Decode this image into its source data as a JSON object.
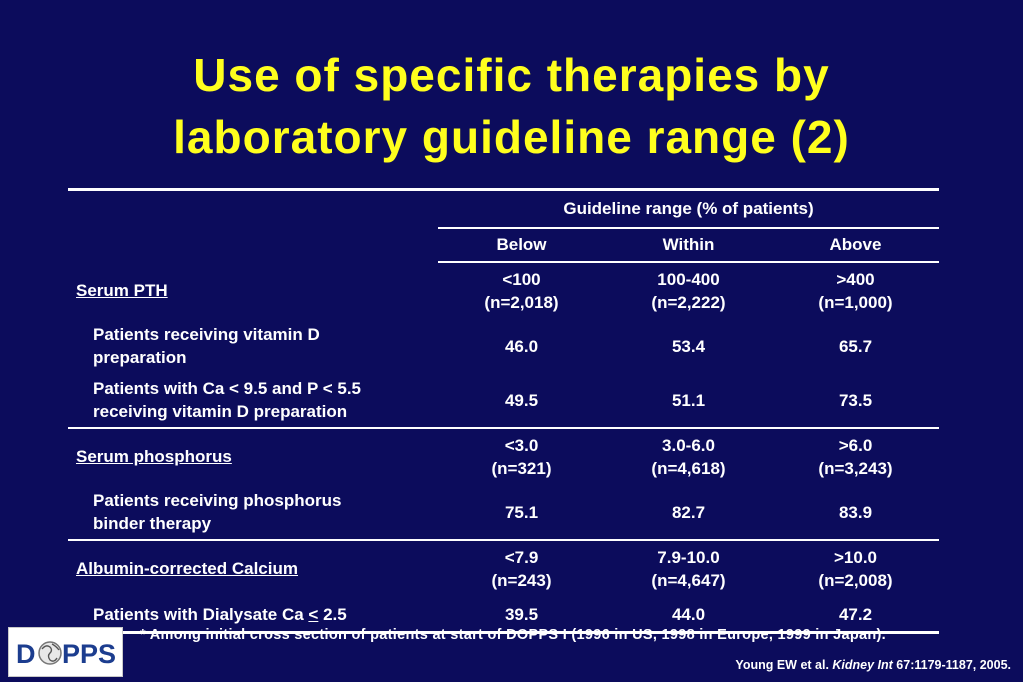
{
  "title": {
    "line1": "Use of specific therapies by",
    "line2": "laboratory guideline range (2)"
  },
  "table": {
    "group_header": "Guideline range (% of patients)",
    "columns": [
      "Below",
      "Within",
      "Above"
    ],
    "sections": [
      {
        "label": "Serum PTH",
        "ranges": [
          {
            "range": "<100",
            "n": "(n=2,018)"
          },
          {
            "range": "100-400",
            "n": "(n=2,222)"
          },
          {
            "range": ">400",
            "n": "(n=1,000)"
          }
        ],
        "rows": [
          {
            "label_line1": "Patients receiving vitamin D",
            "label_line2": "preparation",
            "values": [
              "46.0",
              "53.4",
              "65.7"
            ]
          },
          {
            "label_line1": "Patients with Ca < 9.5 and P < 5.5",
            "label_line2": "receiving vitamin D preparation",
            "values": [
              "49.5",
              "51.1",
              "73.5"
            ]
          }
        ]
      },
      {
        "label": "Serum phosphorus",
        "ranges": [
          {
            "range": "<3.0",
            "n": "(n=321)"
          },
          {
            "range": "3.0-6.0",
            "n": "(n=4,618)"
          },
          {
            "range": ">6.0",
            "n": "(n=3,243)"
          }
        ],
        "rows": [
          {
            "label_line1": "Patients receiving phosphorus",
            "label_line2": "binder therapy",
            "values": [
              "75.1",
              "82.7",
              "83.9"
            ]
          }
        ]
      },
      {
        "label": "Albumin-corrected Calcium",
        "ranges": [
          {
            "range": "<7.9",
            "n": "(n=243)"
          },
          {
            "range": "7.9-10.0",
            "n": "(n=4,647)"
          },
          {
            "range": ">10.0",
            "n": "(n=2,008)"
          }
        ],
        "rows": [
          {
            "label_prefix": "Patients with Dialysate Ca ",
            "label_symbol": "<",
            "label_suffix": " 2.5",
            "values": [
              "39.5",
              "44.0",
              "47.2"
            ]
          }
        ]
      }
    ]
  },
  "logo": {
    "text_left": "D",
    "text_right": "PPS"
  },
  "footnote": "* Among initial cross section of patients at start of DOPPS I (1996 in US, 1998 in Europe, 1999 in Japan).",
  "citation": {
    "authors": "Young EW et al. ",
    "journal": "Kidney Int",
    "ref": " 67:1179-1187, 2005."
  },
  "colors": {
    "background": "#0c0c5c",
    "title": "#ffff1e",
    "text": "#ffffff",
    "logo_blue": "#1c3d8f"
  }
}
